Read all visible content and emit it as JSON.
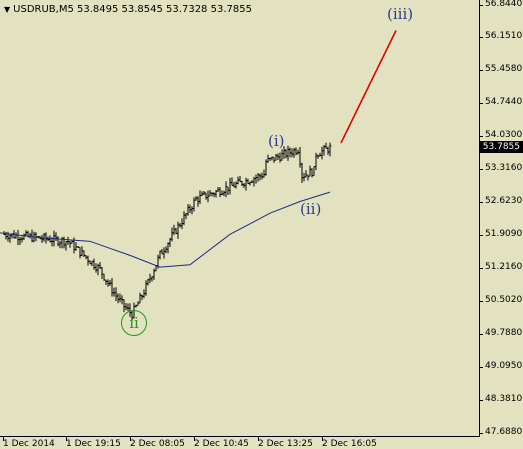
{
  "header": {
    "symbol_line": "USDRUB,M5  53.8495 53.8545 53.7328 53.7855"
  },
  "price_axis": {
    "ticks": [
      "56.8440",
      "56.1510",
      "55.4580",
      "54.7440",
      "54.0300",
      "53.3160",
      "52.6230",
      "51.9090",
      "51.2160",
      "50.5020",
      "49.7880",
      "49.0950",
      "48.3810",
      "47.6880"
    ],
    "current_price": "53.7855"
  },
  "time_axis": {
    "labels": [
      "1 Dec 2014",
      "1 Dec 19:15",
      "2 Dec 08:05",
      "2 Dec 10:45",
      "2 Dec 13:25",
      "2 Dec 16:05"
    ]
  },
  "wave_labels": {
    "iii": "(iii)",
    "i": "(i)",
    "ii_small": "(ii)",
    "ii_circle": "ii"
  },
  "colors": {
    "background": "#e2e2c0",
    "candles": "#000000",
    "moving_average": "#1f2a80",
    "projection": "#e00000",
    "wave_text": "#2e3a8c",
    "wave_circle": "#1f9a1f"
  },
  "chart_data": {
    "type": "candlestick",
    "symbol": "USDRUB",
    "timeframe": "M5",
    "ohlc_last": {
      "open": 53.8495,
      "high": 53.8545,
      "low": 53.7328,
      "close": 53.7855
    },
    "ylim": [
      47.688,
      56.844
    ],
    "approx_path": [
      {
        "t": "1 Dec 2014",
        "price": 51.95
      },
      {
        "t": "1 Dec 19:15",
        "price": 51.8
      },
      {
        "t": "2 Dec 08:05",
        "price": 50.6
      },
      {
        "t": "2 Dec 10:45",
        "price": 52.7
      },
      {
        "t": "2 Dec 13:25",
        "price": 53.2
      },
      {
        "t": "2 Dec 16:05",
        "price": 53.79
      }
    ],
    "projection_target_price": 56.3
  }
}
